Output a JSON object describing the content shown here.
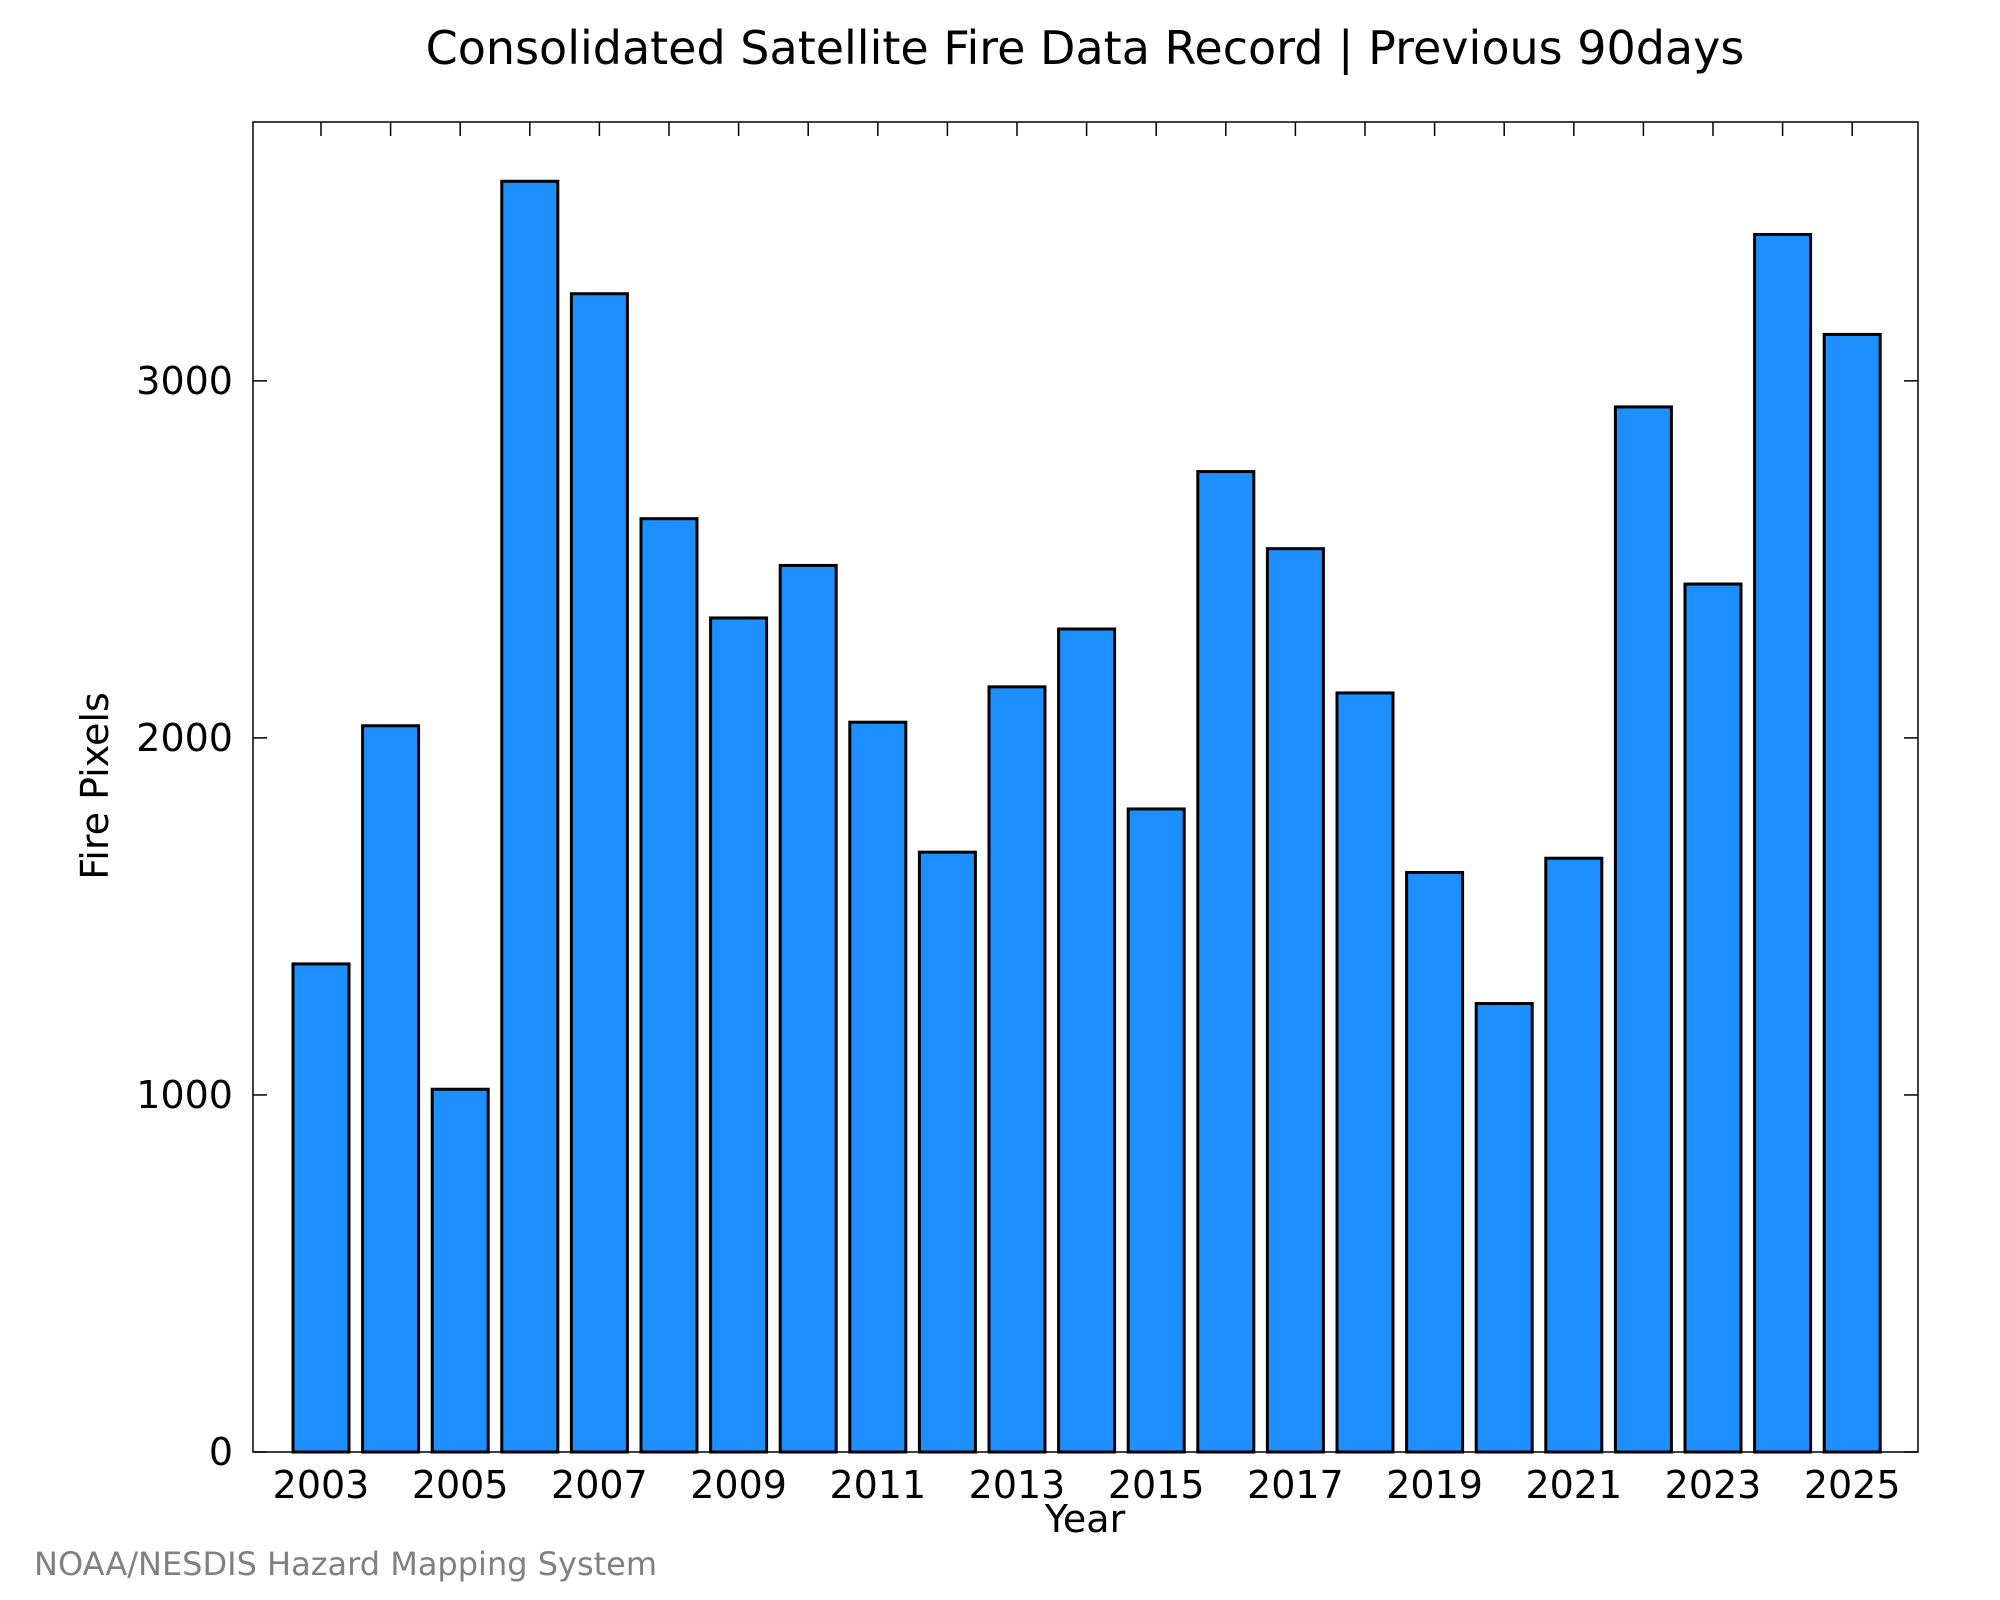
{
  "chart_data": {
    "type": "bar",
    "title": "Consolidated Satellite Fire Data Record | Previous 90days",
    "xlabel": "Year",
    "ylabel": "Fire Pixels",
    "categories": [
      "2003",
      "2004",
      "2005",
      "2006",
      "2007",
      "2008",
      "2009",
      "2010",
      "2011",
      "2012",
      "2013",
      "2014",
      "2015",
      "2016",
      "2017",
      "2018",
      "2019",
      "2020",
      "2021",
      "2022",
      "2023",
      "2024",
      "2025"
    ],
    "values": [
      1367,
      2034,
      1016,
      3559,
      3244,
      2614,
      2336,
      2483,
      2044,
      1680,
      2143,
      2305,
      1801,
      2746,
      2530,
      2126,
      1623,
      1256,
      1663,
      2927,
      2431,
      3410,
      3130
    ],
    "xticks": [
      "2003",
      "2005",
      "2007",
      "2009",
      "2011",
      "2013",
      "2015",
      "2017",
      "2019",
      "2021",
      "2023",
      "2025"
    ],
    "yticks": [
      0,
      1000,
      2000,
      3000
    ],
    "ylim": [
      0,
      3725
    ],
    "grid": false,
    "colors": {
      "bar": "#1e8fff",
      "edge": "#000000"
    }
  },
  "credit": "NOAA/NESDIS Hazard Mapping System"
}
